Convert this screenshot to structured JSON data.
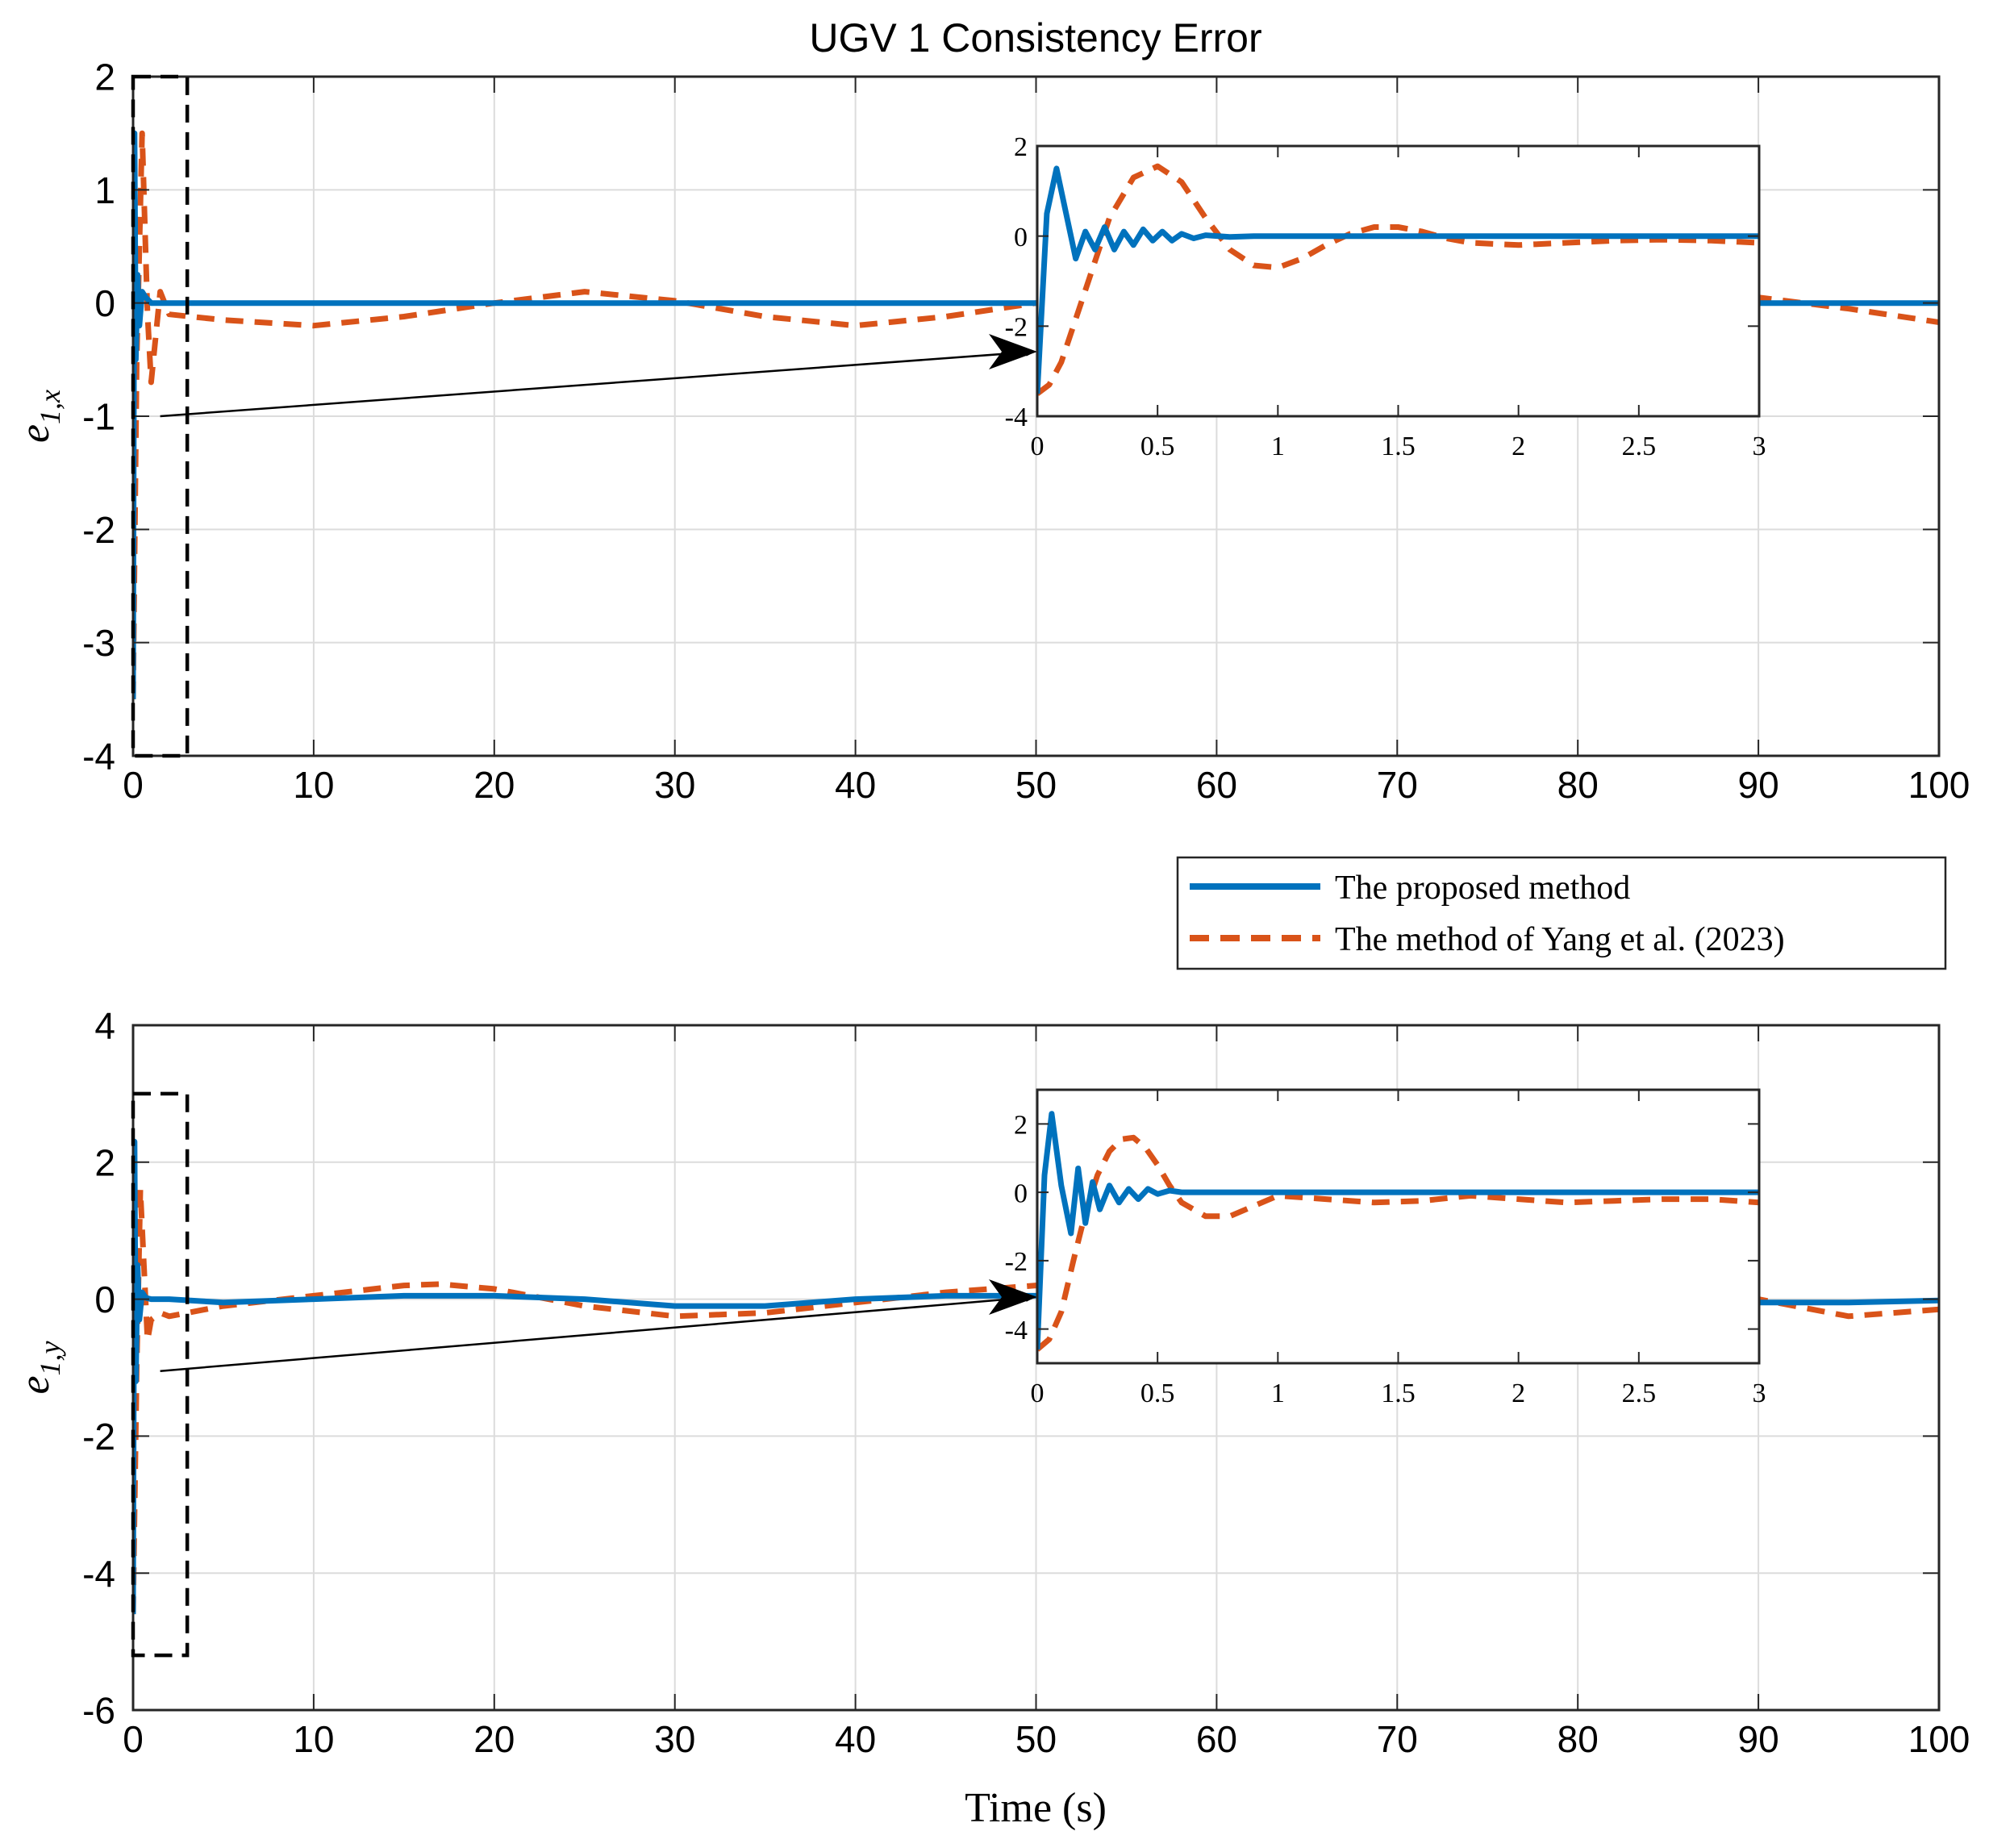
{
  "figure": {
    "title": "UGV 1 Consistency Error",
    "xlabel": "Time (s)",
    "colors": {
      "proposed": "#0072BD",
      "yang": "#D95319",
      "grid": "#dcdcdc",
      "axis": "#262626",
      "zoom_box": "#000000"
    }
  },
  "legend": {
    "entries": [
      {
        "label": "The proposed method",
        "color": "#0072BD",
        "style": "solid"
      },
      {
        "label": "The method of Yang et al. (2023)",
        "color": "#D95319",
        "style": "dashed"
      }
    ]
  },
  "chart_data": [
    {
      "type": "line",
      "id": "top",
      "ylabel": "e",
      "ylabel_sub": "1,x",
      "xlim": [
        0,
        100
      ],
      "ylim": [
        -4,
        2
      ],
      "xticks": [
        0,
        10,
        20,
        30,
        40,
        50,
        60,
        70,
        80,
        90,
        100
      ],
      "yticks": [
        -4,
        -3,
        -2,
        -1,
        0,
        1,
        2
      ],
      "grid": true,
      "legend": "below-right",
      "series": [
        {
          "name": "The proposed method",
          "x": [
            0,
            0.08,
            0.15,
            0.25,
            0.35,
            0.5,
            0.7,
            1,
            2,
            5,
            10,
            20,
            30,
            40,
            50,
            60,
            70,
            80,
            90,
            100
          ],
          "y": [
            -3.5,
            1.5,
            -0.5,
            0.25,
            -0.2,
            0.1,
            0.05,
            0,
            0,
            0,
            0,
            0,
            0,
            0,
            0,
            0,
            0,
            0,
            0,
            0
          ]
        },
        {
          "name": "The method of Yang et al. (2023)",
          "x": [
            0,
            0.2,
            0.5,
            0.8,
            1,
            1.5,
            2,
            5,
            10,
            15,
            20,
            25,
            30,
            35,
            40,
            45,
            50,
            55,
            60,
            65,
            70,
            75,
            80,
            85,
            90,
            95,
            100
          ],
          "y": [
            -3.5,
            -0.5,
            1.5,
            -0.1,
            -0.7,
            0.1,
            -0.1,
            -0.15,
            -0.2,
            -0.12,
            0,
            0.1,
            0.02,
            -0.12,
            -0.2,
            -0.12,
            0,
            0.12,
            0.15,
            0.05,
            -0.1,
            -0.15,
            -0.1,
            0,
            0.05,
            -0.05,
            -0.17
          ]
        }
      ],
      "inset": {
        "xlim": [
          0,
          3
        ],
        "ylim": [
          -4,
          2
        ],
        "xticks": [
          0,
          0.5,
          1,
          1.5,
          2,
          2.5,
          3
        ],
        "xtick_labels": [
          "0",
          "0.5",
          "1",
          "1.5",
          "2",
          "2.5",
          "3"
        ],
        "yticks": [
          -4,
          -2,
          0,
          2
        ],
        "series": [
          {
            "name": "The proposed method",
            "x": [
              0,
              0.04,
              0.08,
              0.12,
              0.16,
              0.2,
              0.24,
              0.28,
              0.32,
              0.36,
              0.4,
              0.44,
              0.48,
              0.52,
              0.56,
              0.6,
              0.65,
              0.7,
              0.8,
              0.9,
              1,
              1.5,
              2,
              2.5,
              3
            ],
            "y": [
              -3.5,
              0.5,
              1.5,
              0.5,
              -0.5,
              0.1,
              -0.3,
              0.2,
              -0.3,
              0.1,
              -0.2,
              0.15,
              -0.1,
              0.1,
              -0.1,
              0.05,
              -0.05,
              0.02,
              -0.02,
              0,
              0,
              0,
              0,
              0,
              0
            ]
          },
          {
            "name": "The method of Yang et al. (2023)",
            "x": [
              0,
              0.05,
              0.1,
              0.2,
              0.3,
              0.4,
              0.5,
              0.6,
              0.7,
              0.8,
              0.9,
              1,
              1.1,
              1.2,
              1.3,
              1.4,
              1.5,
              1.6,
              1.7,
              1.8,
              2,
              2.2,
              2.4,
              2.6,
              2.8,
              3
            ],
            "y": [
              -3.5,
              -3.3,
              -2.8,
              -1.2,
              0.4,
              1.3,
              1.55,
              1.2,
              0.4,
              -0.3,
              -0.65,
              -0.7,
              -0.5,
              -0.2,
              0.05,
              0.2,
              0.2,
              0.1,
              -0.05,
              -0.15,
              -0.2,
              -0.15,
              -0.1,
              -0.08,
              -0.1,
              -0.15
            ]
          }
        ]
      },
      "zoom_box": {
        "x": [
          0,
          3
        ],
        "y": [
          -4,
          2
        ]
      }
    },
    {
      "type": "line",
      "id": "bottom",
      "ylabel": "e",
      "ylabel_sub": "1,y",
      "xlim": [
        0,
        100
      ],
      "ylim": [
        -6,
        4
      ],
      "xticks": [
        0,
        10,
        20,
        30,
        40,
        50,
        60,
        70,
        80,
        90,
        100
      ],
      "yticks": [
        -6,
        -4,
        -2,
        0,
        2,
        4
      ],
      "grid": true,
      "series": [
        {
          "name": "The proposed method",
          "x": [
            0,
            0.08,
            0.15,
            0.25,
            0.35,
            0.5,
            0.7,
            1,
            2,
            5,
            10,
            15,
            20,
            25,
            30,
            35,
            40,
            45,
            50,
            55,
            60,
            65,
            70,
            75,
            80,
            85,
            90,
            95,
            100
          ],
          "y": [
            -4.6,
            2.3,
            -1.2,
            0.5,
            -0.3,
            0.1,
            0.02,
            0,
            0,
            -0.05,
            0,
            0.05,
            0.05,
            0,
            -0.1,
            -0.1,
            0,
            0.05,
            0.05,
            0,
            -0.05,
            -0.05,
            0,
            0.02,
            0,
            -0.05,
            -0.05,
            -0.05,
            -0.02
          ]
        },
        {
          "name": "The method of Yang et al. (2023)",
          "x": [
            0,
            0.2,
            0.4,
            0.6,
            0.8,
            1,
            1.5,
            2,
            5,
            10,
            15,
            17,
            20,
            25,
            30,
            35,
            40,
            45,
            50,
            55,
            60,
            65,
            70,
            75,
            80,
            85,
            90,
            95,
            100
          ],
          "y": [
            -4.6,
            -1,
            1.6,
            0.5,
            -0.6,
            -0.3,
            -0.2,
            -0.25,
            -0.1,
            0.05,
            0.2,
            0.22,
            0.15,
            -0.1,
            -0.25,
            -0.2,
            -0.05,
            0.1,
            0.2,
            0.1,
            -0.05,
            -0.2,
            -0.25,
            -0.15,
            0,
            0.1,
            0,
            -0.25,
            -0.15
          ]
        }
      ],
      "inset": {
        "xlim": [
          0,
          3
        ],
        "ylim": [
          -5,
          3
        ],
        "xticks": [
          0,
          0.5,
          1,
          1.5,
          2,
          2.5,
          3
        ],
        "xtick_labels": [
          "0",
          "0.5",
          "1",
          "1.5",
          "2",
          "2.5",
          "3"
        ],
        "yticks": [
          -4,
          -2,
          0,
          2
        ],
        "series": [
          {
            "name": "The proposed method",
            "x": [
              0,
              0.03,
              0.06,
              0.1,
              0.14,
              0.17,
              0.2,
              0.23,
              0.26,
              0.3,
              0.34,
              0.38,
              0.42,
              0.46,
              0.5,
              0.55,
              0.6,
              0.7,
              0.8,
              1,
              1.5,
              2,
              2.5,
              3
            ],
            "y": [
              -4.6,
              0.5,
              2.3,
              0.2,
              -1.2,
              0.7,
              -0.9,
              0.3,
              -0.5,
              0.2,
              -0.3,
              0.1,
              -0.2,
              0.1,
              -0.05,
              0.05,
              0,
              0,
              0,
              0,
              0,
              0,
              0,
              0
            ]
          },
          {
            "name": "The method of Yang et al. (2023)",
            "x": [
              0,
              0.05,
              0.1,
              0.15,
              0.2,
              0.25,
              0.3,
              0.35,
              0.4,
              0.45,
              0.5,
              0.55,
              0.6,
              0.7,
              0.8,
              0.9,
              1,
              1.2,
              1.4,
              1.6,
              1.8,
              2,
              2.2,
              2.4,
              2.6,
              2.8,
              3
            ],
            "y": [
              -4.6,
              -4.3,
              -3.5,
              -2,
              -0.6,
              0.5,
              1.2,
              1.55,
              1.6,
              1.3,
              0.8,
              0.2,
              -0.3,
              -0.7,
              -0.7,
              -0.4,
              -0.1,
              -0.2,
              -0.3,
              -0.25,
              -0.1,
              -0.2,
              -0.3,
              -0.25,
              -0.2,
              -0.2,
              -0.3
            ]
          }
        ]
      },
      "zoom_box": {
        "x": [
          0,
          3
        ],
        "y": [
          -5.2,
          3
        ]
      }
    }
  ]
}
